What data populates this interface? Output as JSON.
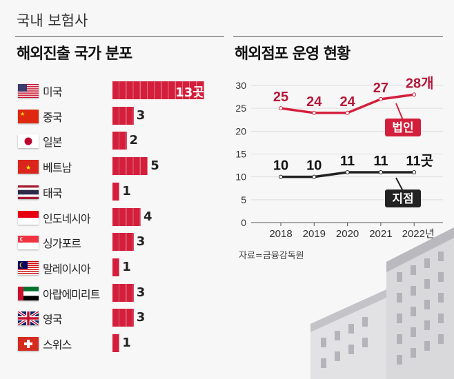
{
  "header": {
    "kicker": "국내 보험사",
    "left_title": "해외진출 국가 분포",
    "right_title": "해외점포 운영 현황"
  },
  "source": "자료=금융감독원",
  "colors": {
    "accent": "#d31f3c",
    "dark": "#222222"
  },
  "chart_data": [
    {
      "type": "bar",
      "orientation": "horizontal",
      "unit_suffix": "곳",
      "categories": [
        "미국",
        "중국",
        "일본",
        "베트남",
        "태국",
        "인도네시아",
        "싱가포르",
        "말레이시아",
        "아랍에미리트",
        "영국",
        "스위스"
      ],
      "flags": [
        "us",
        "cn",
        "jp",
        "vn",
        "th",
        "id",
        "sg",
        "my",
        "ae",
        "gb",
        "ch"
      ],
      "values": [
        13,
        3,
        2,
        5,
        1,
        4,
        3,
        1,
        3,
        3,
        1
      ],
      "value_labels": [
        "13곳",
        "3",
        "2",
        "5",
        "1",
        "4",
        "3",
        "1",
        "3",
        "3",
        "1"
      ]
    },
    {
      "type": "line",
      "x": [
        "2018",
        "2019",
        "2020",
        "2021",
        "2022"
      ],
      "x_labels": [
        "2018",
        "2019",
        "2020",
        "2021",
        "2022년"
      ],
      "ylim": [
        0,
        30
      ],
      "yticks": [
        0,
        5,
        10,
        15,
        20,
        25,
        30
      ],
      "grid": true,
      "series": [
        {
          "name": "법인",
          "color": "#d31f3c",
          "values": [
            25,
            24,
            24,
            27,
            28
          ],
          "labels": [
            "25",
            "24",
            "24",
            "27",
            "28개"
          ]
        },
        {
          "name": "지점",
          "color": "#222222",
          "values": [
            10,
            10,
            11,
            11,
            11
          ],
          "labels": [
            "10",
            "10",
            "11",
            "11",
            "11곳"
          ]
        }
      ]
    }
  ]
}
